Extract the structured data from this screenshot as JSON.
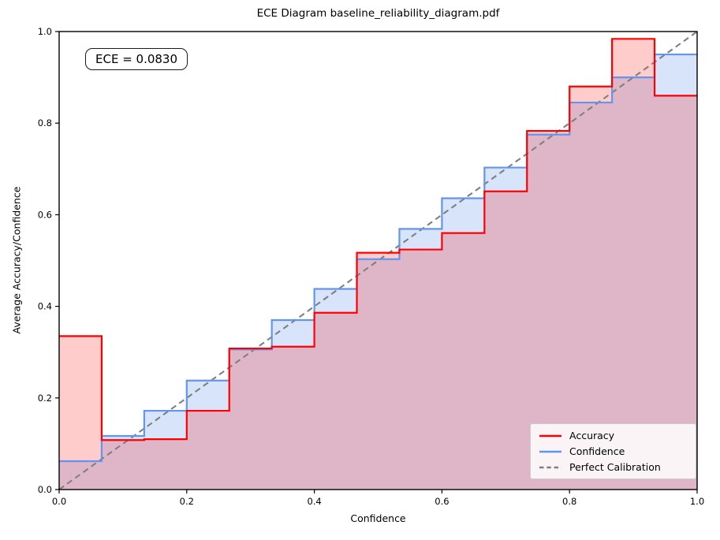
{
  "chart_data": {
    "type": "area",
    "subtype": "reliability-diagram-steps",
    "title": "ECE Diagram baseline_reliability_diagram.pdf",
    "xlabel": "Confidence",
    "ylabel": "Average Accuracy/Confidence",
    "xlim": [
      0.0,
      1.0
    ],
    "ylim": [
      0.0,
      1.0
    ],
    "grid": false,
    "xticks": [
      "0.0",
      "0.2",
      "0.4",
      "0.6",
      "0.8",
      "1.0"
    ],
    "yticks": [
      "0.0",
      "0.2",
      "0.4",
      "0.6",
      "0.8",
      "1.0"
    ],
    "n_bins": 15,
    "bin_edges": [
      0.0,
      0.06667,
      0.13333,
      0.2,
      0.26667,
      0.33333,
      0.4,
      0.46667,
      0.53333,
      0.6,
      0.66667,
      0.73333,
      0.8,
      0.86667,
      0.93333,
      1.0
    ],
    "series": [
      {
        "name": "Accuracy",
        "style": "step",
        "color": "#ff0000",
        "fill_alpha": 0.2,
        "values": [
          0.335,
          0.108,
          0.11,
          0.172,
          0.308,
          0.312,
          0.386,
          0.517,
          0.524,
          0.56,
          0.651,
          0.783,
          0.88,
          0.984,
          0.86
        ]
      },
      {
        "name": "Confidence",
        "style": "step",
        "color": "#6495ed",
        "fill_alpha": 0.25,
        "values": [
          0.062,
          0.117,
          0.172,
          0.238,
          0.306,
          0.37,
          0.438,
          0.503,
          0.569,
          0.636,
          0.703,
          0.775,
          0.845,
          0.9,
          0.95
        ]
      },
      {
        "name": "Perfect Calibration",
        "style": "dashed-line",
        "color": "#7f7f7f",
        "points": [
          [
            0.0,
            0.0
          ],
          [
            1.0,
            1.0
          ]
        ]
      }
    ],
    "legend": {
      "position": "lower right",
      "items": [
        "Accuracy",
        "Confidence",
        "Perfect Calibration"
      ]
    },
    "annotation": {
      "text": "ECE = 0.0830",
      "position": "upper left"
    }
  }
}
